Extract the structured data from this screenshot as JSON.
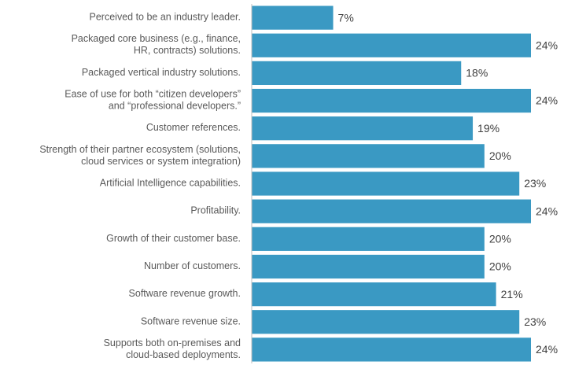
{
  "chart_data": {
    "type": "bar",
    "orientation": "horizontal",
    "color": "#3a99c3",
    "categories": [
      "Perceived to be an industry leader.",
      "Packaged core business (e.g., finance,\nHR, contracts) solutions.",
      "Packaged vertical industry solutions.",
      "Ease of use for both “citizen developers”\nand “professional developers.”",
      "Customer references.",
      "Strength of their partner ecosystem (solutions,\ncloud services or system integration)",
      "Artificial Intelligence capabilities.",
      "Profitability.",
      "Growth of their customer base.",
      "Number of customers.",
      "Software revenue growth.",
      "Software revenue size.",
      "Supports both on-premises and\ncloud-based deployments."
    ],
    "values": [
      7,
      24,
      18,
      24,
      19,
      20,
      23,
      24,
      20,
      20,
      21,
      23,
      24
    ],
    "value_labels": [
      "7%",
      "24%",
      "18%",
      "24%",
      "19%",
      "20%",
      "23%",
      "24%",
      "20%",
      "20%",
      "21%",
      "23%",
      "24%"
    ]
  }
}
